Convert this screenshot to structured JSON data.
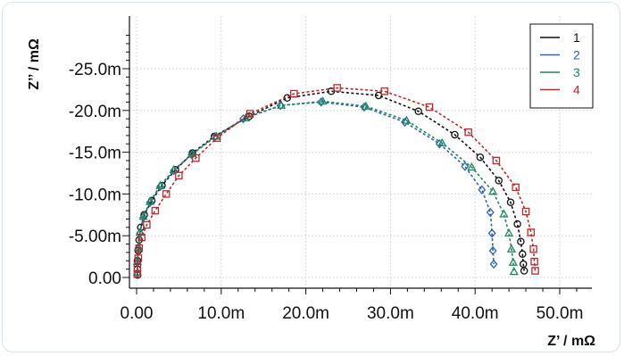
{
  "chart_data": {
    "type": "scatter",
    "xlabel": "Z’ / mΩ",
    "ylabel": "Z’’ / mΩ",
    "xlim": [
      0,
      53
    ],
    "ylim": [
      0,
      -30
    ],
    "x_ticks": [
      {
        "value": 0,
        "label": "0.00"
      },
      {
        "value": 10,
        "label": "10.0m"
      },
      {
        "value": 20,
        "label": "20.0m"
      },
      {
        "value": 30,
        "label": "30.0m"
      },
      {
        "value": 40,
        "label": "40.0m"
      },
      {
        "value": 50,
        "label": "50.0m"
      }
    ],
    "y_ticks": [
      {
        "value": 0,
        "label": "0.00"
      },
      {
        "value": -5,
        "label": "-5.00m"
      },
      {
        "value": -10,
        "label": "-10.0m"
      },
      {
        "value": -15,
        "label": "-15.0m"
      },
      {
        "value": -20,
        "label": "-20.0m"
      },
      {
        "value": -25,
        "label": "-25.0m"
      }
    ],
    "grid": true,
    "legend_position": "top-right",
    "series": [
      {
        "name": "1",
        "color": "#111111",
        "marker": "circle",
        "x": [
          0.1,
          0.1,
          0.1,
          0.2,
          0.3,
          0.5,
          0.9,
          1.8,
          3.0,
          4.6,
          6.6,
          9.2,
          13.3,
          17.8,
          23.0,
          28.6,
          33.3,
          37.6,
          40.6,
          42.8,
          44.2,
          45.0,
          45.4,
          45.6,
          45.7,
          45.8
        ],
        "y": [
          -0.3,
          -1.0,
          -2.0,
          -3.2,
          -4.5,
          -6.0,
          -7.5,
          -9.2,
          -11.0,
          -12.9,
          -14.9,
          -16.9,
          -19.3,
          -21.5,
          -22.3,
          -21.8,
          -19.9,
          -17.1,
          -14.4,
          -11.6,
          -9.0,
          -6.4,
          -4.3,
          -2.8,
          -1.6,
          -0.8
        ]
      },
      {
        "name": "2",
        "color": "#2e63b8",
        "marker": "diamond",
        "x": [
          0.1,
          0.1,
          0.2,
          0.4,
          0.8,
          1.6,
          2.8,
          4.4,
          6.5,
          9.2,
          12.6,
          17.0,
          21.8,
          26.9,
          31.7,
          35.8,
          38.8,
          40.8,
          41.8,
          42.0,
          42.1,
          42.2
        ],
        "y": [
          -0.5,
          -1.8,
          -3.5,
          -5.3,
          -7.2,
          -9.0,
          -10.9,
          -12.8,
          -14.7,
          -16.8,
          -19.0,
          -20.6,
          -21.0,
          -20.4,
          -18.6,
          -16.0,
          -13.3,
          -10.5,
          -7.8,
          -5.3,
          -3.2,
          -1.6
        ]
      },
      {
        "name": "3",
        "color": "#1a8a5a",
        "marker": "triangle",
        "x": [
          0.1,
          0.1,
          0.2,
          0.4,
          0.8,
          1.6,
          2.8,
          4.4,
          6.6,
          9.4,
          12.9,
          17.1,
          22.0,
          27.1,
          31.9,
          36.1,
          39.6,
          42.1,
          43.4,
          44.0,
          44.3,
          44.5,
          44.6
        ],
        "y": [
          -0.6,
          -1.9,
          -3.6,
          -5.4,
          -7.3,
          -9.1,
          -11.0,
          -12.9,
          -14.8,
          -16.9,
          -19.1,
          -20.6,
          -21.1,
          -20.5,
          -18.8,
          -16.1,
          -13.2,
          -10.3,
          -7.6,
          -5.3,
          -3.4,
          -1.8,
          -0.7
        ]
      },
      {
        "name": "4",
        "color": "#c0282c",
        "marker": "square",
        "x": [
          0.1,
          0.1,
          0.2,
          0.3,
          0.6,
          1.2,
          2.2,
          3.5,
          5.0,
          7.0,
          9.5,
          13.4,
          18.6,
          23.7,
          29.3,
          34.6,
          39.2,
          42.5,
          44.8,
          46.0,
          46.6,
          46.9,
          47.0,
          47.1
        ],
        "y": [
          -0.4,
          -1.2,
          -2.3,
          -3.5,
          -4.8,
          -6.3,
          -8.0,
          -10.0,
          -12.2,
          -14.3,
          -16.7,
          -19.6,
          -22.0,
          -22.7,
          -22.3,
          -20.4,
          -17.4,
          -14.0,
          -10.8,
          -7.9,
          -5.4,
          -3.4,
          -1.9,
          -0.8
        ]
      }
    ]
  }
}
